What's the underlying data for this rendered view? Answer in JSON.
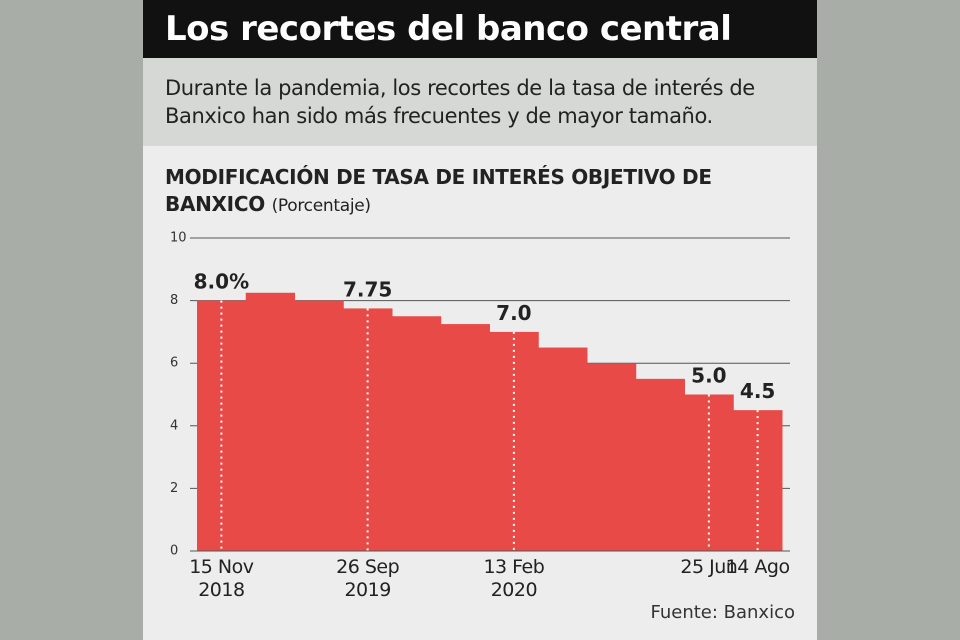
{
  "header": {
    "title": "Los recortes del banco central",
    "subtitle": "Durante la pandemia, los recortes de la tasa de interés de Banxico han sido más frecuentes y de mayor tamaño."
  },
  "chart_data": {
    "type": "step-bar",
    "title": "MODIFICACIÓN DE TASA DE INTERÉS OBJETIVO DE BANXICO",
    "y_label": "(Porcentaje)",
    "categories": [
      "15 Nov\n2018",
      null,
      null,
      "26 Sep\n2019",
      null,
      null,
      "13 Feb\n2020",
      null,
      null,
      null,
      "25 Jun",
      "14 Ago"
    ],
    "values": [
      8.0,
      8.25,
      8.0,
      7.75,
      7.5,
      7.25,
      7.0,
      6.5,
      6.0,
      5.5,
      5.0,
      4.5
    ],
    "value_labels": [
      "8.0%",
      null,
      null,
      "7.75",
      null,
      null,
      "7.0",
      null,
      null,
      null,
      "5.0",
      "4.5"
    ],
    "color": "#e84a47",
    "ylim": [
      0,
      10
    ],
    "yticks": [
      0,
      2,
      4,
      6,
      8,
      10
    ],
    "grid": true
  },
  "source": "Fuente: Banxico"
}
